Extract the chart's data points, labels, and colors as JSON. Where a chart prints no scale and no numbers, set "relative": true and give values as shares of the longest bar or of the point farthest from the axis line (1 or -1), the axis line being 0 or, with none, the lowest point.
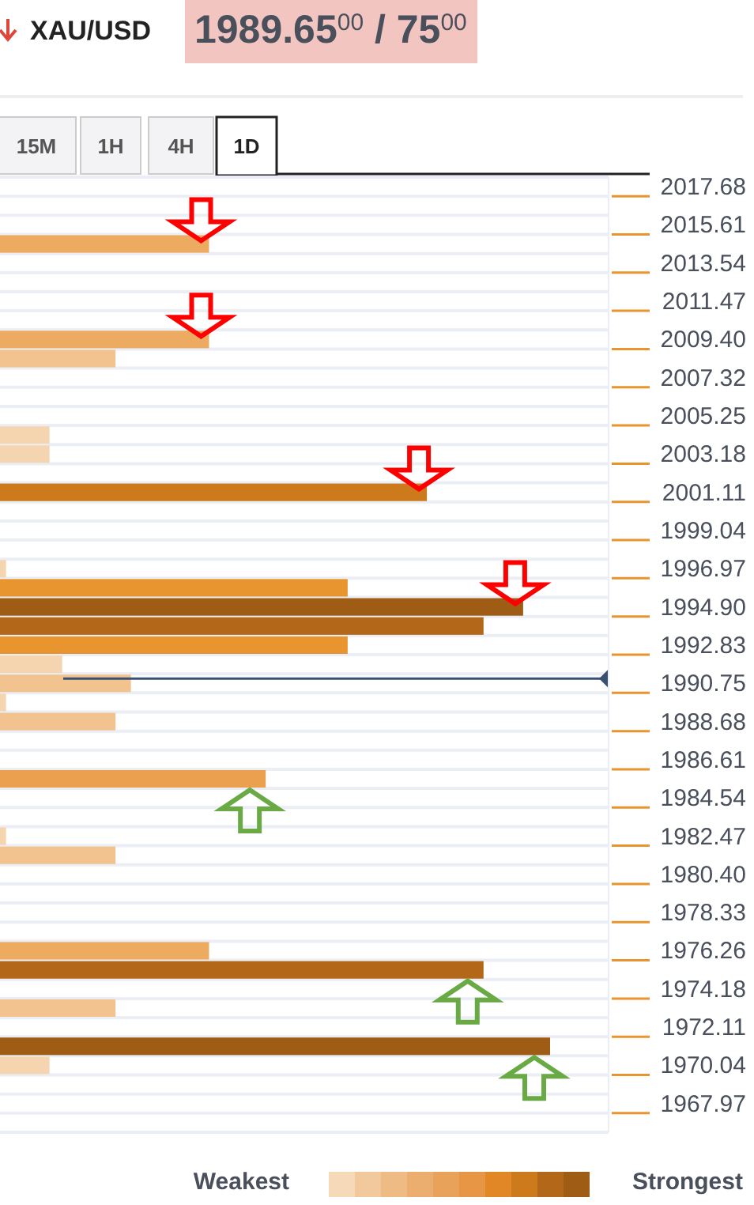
{
  "chart_data": {
    "type": "bar",
    "orientation": "horizontal",
    "relative": true,
    "grid": true,
    "title": "XAU/USD",
    "subtitle": "1989.65$^{00}$ / 75$^{00}$",
    "categories": [
      "2017.68",
      null,
      "2015.61",
      null,
      "2013.54",
      null,
      "2011.47",
      null,
      "2009.40",
      null,
      "2007.32",
      null,
      "2005.25",
      null,
      "2003.18",
      null,
      "2001.11",
      null,
      "1999.04",
      null,
      "1996.97",
      null,
      "1994.90",
      null,
      "1992.83",
      null,
      "1990.75",
      null,
      "1988.68",
      null,
      "1986.61",
      null,
      "1984.54",
      null,
      "1982.47",
      null,
      "1980.40",
      null,
      "1978.33",
      null,
      "1976.26",
      null,
      "1974.18",
      null,
      "1972.11",
      null,
      "1970.04",
      null,
      "1967.97",
      null
    ],
    "values": [
      null,
      null,
      null,
      0.38,
      null,
      null,
      null,
      null,
      0.38,
      0.21,
      null,
      null,
      null,
      0.09,
      0.09,
      null,
      0.776,
      null,
      null,
      null,
      0.011,
      0.632,
      0.951,
      0.879,
      0.632,
      0.113,
      0.238,
      0.011,
      0.21,
      null,
      null,
      0.483,
      null,
      null,
      0.011,
      0.21,
      null,
      null,
      null,
      null,
      0.38,
      0.879,
      null,
      0.21,
      null,
      1,
      0.09,
      null,
      null,
      null
    ],
    "colors": [
      null,
      null,
      null,
      "#edab62",
      null,
      null,
      null,
      null,
      "#edab62",
      "#f2c38e",
      null,
      null,
      null,
      "#f5d5b0",
      "#f5d5b0",
      null,
      "#cd7a1c",
      null,
      null,
      null,
      "#f5d5b0",
      "#e8952f",
      "#9e5c14",
      "#b26818",
      "#e8952f",
      "#f5d5b0",
      "#f2c38e",
      "#f5d5b0",
      "#f2c38e",
      null,
      null,
      "#eba04f",
      null,
      null,
      "#f5d5b0",
      "#f2c38e",
      null,
      null,
      null,
      null,
      "#edab62",
      "#b26818",
      null,
      "#f2c38e",
      null,
      "#9e5c14",
      "#f5d5b0",
      null,
      null,
      null
    ],
    "ref_lines": [
      {
        "axis": "y",
        "value": "1990.75",
        "color": "#3a5070"
      }
    ],
    "annotations": [
      "15M",
      "1H",
      "4H",
      "1D",
      "Weakest",
      "Strongest"
    ]
  }
}
